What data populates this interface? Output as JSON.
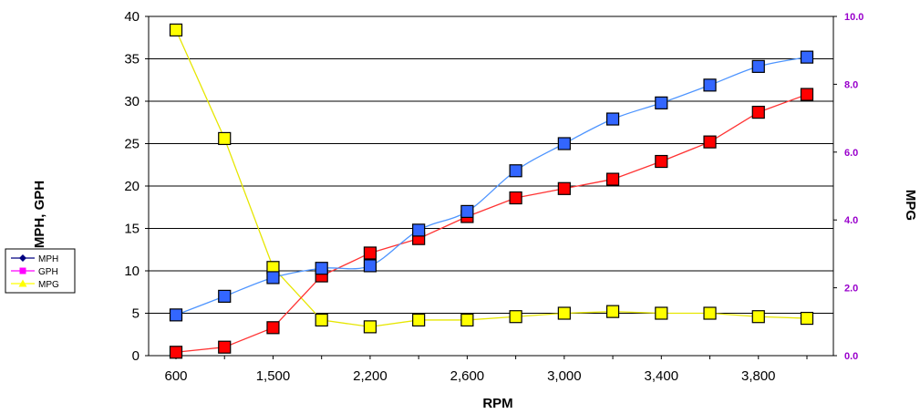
{
  "chart_data": {
    "type": "line",
    "title": "",
    "xlabel": "RPM",
    "ylabel_left": "MPH, GPH",
    "ylabel_right": "MPG",
    "x_categories": [
      "600",
      "",
      "1,500",
      "",
      "2,200",
      "",
      "2,600",
      "",
      "3,000",
      "",
      "3,400",
      "",
      "3,800",
      ""
    ],
    "x_tick_labels": [
      "600",
      "1,500",
      "2,200",
      "2,600",
      "3,000",
      "3,400",
      "3,800"
    ],
    "y_left": {
      "min": 0,
      "max": 40,
      "step": 5,
      "tick_labels": [
        "0",
        "5",
        "10",
        "15",
        "20",
        "25",
        "30",
        "35",
        "40"
      ]
    },
    "y_right": {
      "min": 0,
      "max": 10,
      "step": 2,
      "tick_labels": [
        "0.0",
        "2.0",
        "4.0",
        "6.0",
        "8.0",
        "10.0"
      ],
      "color": "#9900cc"
    },
    "grid": {
      "horizontal": true,
      "vertical": false
    },
    "legend": {
      "placement": "left",
      "entries": [
        {
          "label": "MPH",
          "line_color": "#000080",
          "marker": "diamond"
        },
        {
          "label": "GPH",
          "line_color": "#ff00ff",
          "marker": "square"
        },
        {
          "label": "MPG",
          "line_color": "#ffff00",
          "marker": "triangle"
        }
      ]
    },
    "series": [
      {
        "id": "mph",
        "axis": "left",
        "line_color": "#4d94ff",
        "marker_fill": "#3366ff",
        "values": [
          4.8,
          7.0,
          9.2,
          10.3,
          10.6,
          14.8,
          17.0,
          21.8,
          25.0,
          27.9,
          29.8,
          31.9,
          34.1,
          35.2
        ]
      },
      {
        "id": "gph",
        "axis": "left",
        "line_color": "#ff3333",
        "marker_fill": "#ff0000",
        "values": [
          0.4,
          1.0,
          3.3,
          9.4,
          12.1,
          13.8,
          16.4,
          18.6,
          19.7,
          20.8,
          22.9,
          25.2,
          28.7,
          30.8
        ]
      },
      {
        "id": "mpg",
        "axis": "right",
        "line_color": "#e6e600",
        "marker_fill": "#ffff00",
        "values": [
          9.6,
          6.4,
          2.6,
          1.05,
          0.85,
          1.05,
          1.05,
          1.15,
          1.25,
          1.3,
          1.25,
          1.25,
          1.15,
          1.1
        ]
      }
    ]
  }
}
